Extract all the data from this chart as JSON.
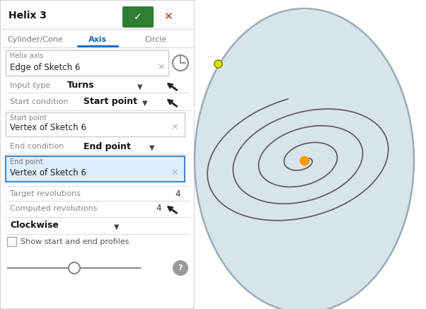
{
  "title": "Helix 3",
  "tabs": [
    "Cylinder/Cone",
    "Axis",
    "Circle"
  ],
  "active_tab_idx": 1,
  "helix_axis_label": "Helix axis",
  "helix_axis_value": "Edge of Sketch 6",
  "input_type_label": "Input type",
  "input_type_value": "Turns",
  "start_condition_label": "Start condition",
  "start_condition_value": "Start point",
  "start_point_label": "Start point",
  "start_point_value": "Vertex of Sketch 6",
  "end_condition_label": "End condition",
  "end_condition_value": "End point",
  "end_point_label": "End point",
  "end_point_value": "Vertex of Sketch 6",
  "target_rev_label": "Target revolutions",
  "target_rev_value": "4",
  "computed_rev_label": "Computed revolutions",
  "computed_rev_value": "4",
  "clockwise_label": "Clockwise",
  "show_profiles_label": "Show start and end profiles",
  "active_tab_color": "#1565c0",
  "inactive_tab_color": "#777777",
  "green_btn": "#2e7d32",
  "red_btn": "#cc2222",
  "end_point_box_bg": "#ddeeff",
  "end_point_box_border": "#4488cc",
  "spiral_fill": "#d8e4ec",
  "spiral_border": "#9aacb8",
  "spiral_line": "#555566",
  "center_dot": "#ff9900",
  "start_dot": "#d4e600",
  "start_dot_edge": "#888800",
  "figsize": [
    6.02,
    4.37
  ],
  "dpi": 100
}
